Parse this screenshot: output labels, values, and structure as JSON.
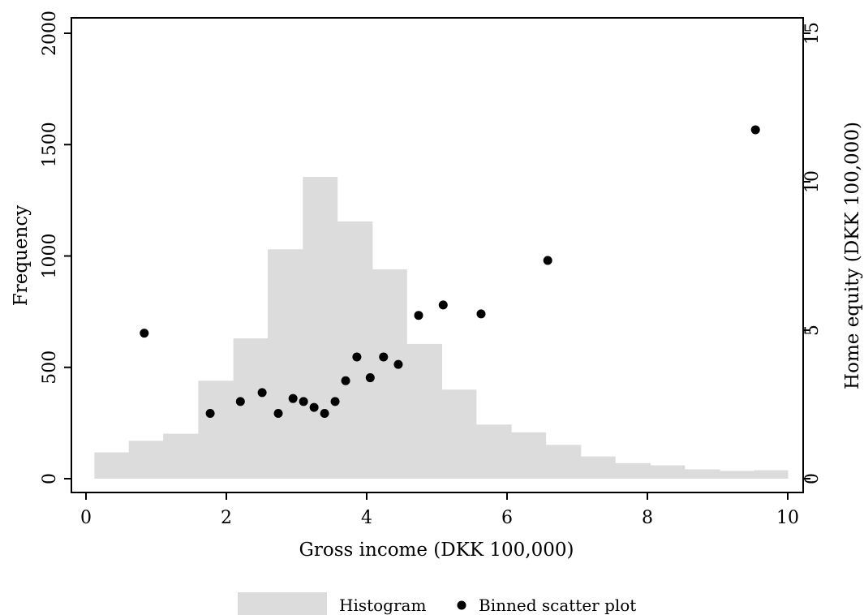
{
  "chart_data": {
    "type": "histogram+scatter",
    "xlabel": "Gross income (DKK 100,000)",
    "ylabel_left": "Frequency",
    "ylabel_right": "Home equity (DKK 100,000)",
    "xlim": [
      -0.2,
      10.2
    ],
    "ylim_left": [
      0,
      2000
    ],
    "ylim_right": [
      0,
      15
    ],
    "x_ticks": [
      0,
      2,
      4,
      6,
      8,
      10
    ],
    "y_left_ticks": [
      0,
      500,
      1000,
      1500,
      2000
    ],
    "y_right_ticks": [
      0,
      5,
      10,
      15
    ],
    "grid": false,
    "legend_position": "bottom",
    "colors": {
      "histogram": "#dcdcdc",
      "scatter": "#000000",
      "axes": "#000000"
    },
    "histogram": {
      "name": "Histogram",
      "bin_edges": [
        0.12,
        0.61,
        1.1,
        1.6,
        2.1,
        2.59,
        3.09,
        3.58,
        4.08,
        4.57,
        5.07,
        5.56,
        6.06,
        6.55,
        7.05,
        7.54,
        8.04,
        8.53,
        9.03,
        9.52,
        10.0
      ],
      "frequencies": [
        118,
        170,
        202,
        440,
        630,
        1030,
        1355,
        1155,
        940,
        605,
        400,
        243,
        208,
        152,
        100,
        70,
        60,
        42,
        35,
        38
      ]
    },
    "scatter": {
      "name": "Binned scatter plot",
      "x": [
        0.83,
        1.77,
        2.2,
        2.51,
        2.74,
        2.95,
        3.1,
        3.25,
        3.4,
        3.55,
        3.7,
        3.86,
        4.05,
        4.24,
        4.45,
        4.74,
        5.09,
        5.63,
        6.58,
        9.54
      ],
      "y": [
        4.9,
        2.2,
        2.6,
        2.9,
        2.2,
        2.7,
        2.6,
        2.4,
        2.2,
        2.6,
        3.3,
        4.1,
        3.4,
        4.1,
        3.85,
        5.5,
        5.85,
        5.55,
        7.35,
        11.75
      ]
    }
  }
}
